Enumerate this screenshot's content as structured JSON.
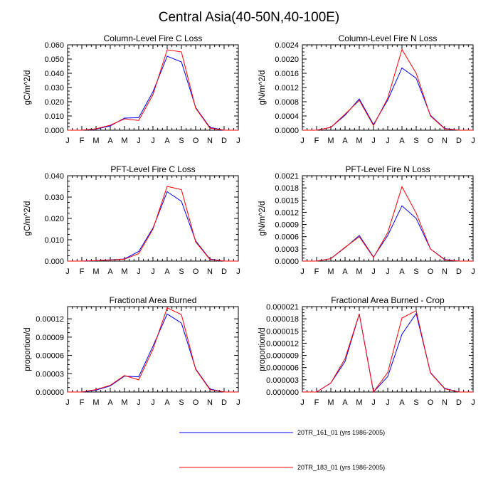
{
  "title": "Central Asia(40-50N,40-100E)",
  "legend": [
    {
      "label": "20TR_161_01 (yrs 1986-2005)",
      "color": "#0000ff"
    },
    {
      "label": "20TR_183_01 (yrs 1986-2005)",
      "color": "#ff0000"
    }
  ],
  "chart_data": [
    {
      "type": "line",
      "title": "Column-Level Fire C Loss",
      "ylabel": "gC/m^2/d",
      "x": [
        "J",
        "F",
        "M",
        "A",
        "M",
        "J",
        "J",
        "A",
        "S",
        "O",
        "N",
        "D",
        "J"
      ],
      "ylim": [
        0,
        0.06
      ],
      "yticks": [
        "0.000",
        "0.010",
        "0.020",
        "0.030",
        "0.040",
        "0.050",
        "0.060"
      ],
      "series": [
        {
          "name": "20TR_161_01 (yrs 1986-2005)",
          "color": "#0000ff",
          "values": [
            0,
            0,
            0.0008,
            0.003,
            0.0085,
            0.0088,
            0.027,
            0.052,
            0.048,
            0.016,
            0.002,
            0,
            0
          ]
        },
        {
          "name": "20TR_183_01 (yrs 1986-2005)",
          "color": "#ff0000",
          "values": [
            0,
            0,
            0.001,
            0.0035,
            0.008,
            0.0068,
            0.025,
            0.0565,
            0.055,
            0.0155,
            0.0015,
            0,
            0
          ]
        }
      ]
    },
    {
      "type": "line",
      "title": "Column-Level Fire N Loss",
      "ylabel": "gN/m^2/d",
      "x": [
        "J",
        "F",
        "M",
        "A",
        "M",
        "J",
        "J",
        "A",
        "S",
        "O",
        "N",
        "D",
        "J"
      ],
      "ylim": [
        0,
        0.0024
      ],
      "yticks": [
        "0.0000",
        "0.0004",
        "0.0008",
        "0.0012",
        "0.0016",
        "0.0020",
        "0.0024"
      ],
      "series": [
        {
          "name": "20TR_161_01 (yrs 1986-2005)",
          "color": "#0000ff",
          "values": [
            0,
            0,
            8e-05,
            0.00042,
            0.00088,
            0.00016,
            0.00085,
            0.00175,
            0.00146,
            0.00042,
            5e-05,
            0,
            0
          ]
        },
        {
          "name": "20TR_183_01 (yrs 1986-2005)",
          "color": "#ff0000",
          "values": [
            0,
            0,
            8e-05,
            0.00045,
            0.00084,
            0.00013,
            0.0009,
            0.00227,
            0.0016,
            0.0004,
            4e-05,
            0,
            0
          ]
        }
      ]
    },
    {
      "type": "line",
      "title": "PFT-Level Fire C Loss",
      "ylabel": "gC/m^2/d",
      "x": [
        "J",
        "F",
        "M",
        "A",
        "M",
        "J",
        "J",
        "A",
        "S",
        "O",
        "N",
        "D",
        "J"
      ],
      "ylim": [
        0,
        0.04
      ],
      "yticks": [
        "0.000",
        "0.010",
        "0.020",
        "0.030",
        "0.040"
      ],
      "series": [
        {
          "name": "20TR_161_01 (yrs 1986-2005)",
          "color": "#0000ff",
          "values": [
            0,
            0,
            0.0002,
            0.0006,
            0.001,
            0.0045,
            0.0155,
            0.0325,
            0.028,
            0.0095,
            0.001,
            0,
            0
          ]
        },
        {
          "name": "20TR_183_01 (yrs 1986-2005)",
          "color": "#ff0000",
          "values": [
            0,
            0,
            0.0002,
            0.0005,
            0.0009,
            0.0035,
            0.015,
            0.035,
            0.0335,
            0.009,
            0.0008,
            0,
            0
          ]
        }
      ]
    },
    {
      "type": "line",
      "title": "PFT-Level Fire N Loss",
      "ylabel": "gN/m^2/d",
      "x": [
        "J",
        "F",
        "M",
        "A",
        "M",
        "J",
        "J",
        "A",
        "S",
        "O",
        "N",
        "D",
        "J"
      ],
      "ylim": [
        0,
        0.0021
      ],
      "yticks": [
        "0.0000",
        "0.0003",
        "0.0006",
        "0.0009",
        "0.0012",
        "0.0015",
        "0.0018",
        "0.0021"
      ],
      "series": [
        {
          "name": "20TR_161_01 (yrs 1986-2005)",
          "color": "#0000ff",
          "values": [
            0,
            0,
            6e-05,
            0.00033,
            0.00063,
            0.0001,
            0.00063,
            0.00136,
            0.00105,
            0.0003,
            4e-05,
            0,
            0
          ]
        },
        {
          "name": "20TR_183_01 (yrs 1986-2005)",
          "color": "#ff0000",
          "values": [
            0,
            0,
            6e-05,
            0.00034,
            0.0006,
            9e-05,
            0.0007,
            0.00183,
            0.00118,
            0.0003,
            3e-05,
            0,
            0
          ]
        }
      ]
    },
    {
      "type": "line",
      "title": "Fractional Area Burned",
      "ylabel": "proportion/d",
      "x": [
        "J",
        "F",
        "M",
        "A",
        "M",
        "J",
        "J",
        "A",
        "S",
        "O",
        "N",
        "D",
        "J"
      ],
      "ylim": [
        0,
        0.00014
      ],
      "yticks": [
        "0.00000",
        "0.00003",
        "0.00006",
        "0.00009",
        "0.00012"
      ],
      "series": [
        {
          "name": "20TR_161_01 (yrs 1986-2005)",
          "color": "#0000ff",
          "values": [
            0,
            0,
            3e-06,
            1e-05,
            2.6e-05,
            2.5e-05,
            7.5e-05,
            0.000128,
            0.000113,
            3.8e-05,
            5e-06,
            0,
            0
          ]
        },
        {
          "name": "20TR_183_01 (yrs 1986-2005)",
          "color": "#ff0000",
          "values": [
            0,
            0,
            4e-06,
            1.1e-05,
            2.7e-05,
            2e-05,
            7e-05,
            0.000138,
            0.000127,
            3.7e-05,
            4e-06,
            0,
            0
          ]
        }
      ]
    },
    {
      "type": "line",
      "title": "Fractional Area Burned - Crop",
      "ylabel": "proportion/d",
      "x": [
        "J",
        "F",
        "M",
        "A",
        "M",
        "J",
        "J",
        "A",
        "S",
        "O",
        "N",
        "D",
        "J"
      ],
      "ylim": [
        0,
        2.1e-05
      ],
      "yticks": [
        "0.000000",
        "0.000003",
        "0.000006",
        "0.000009",
        "0.000012",
        "0.000015",
        "0.000018",
        "0.000021"
      ],
      "series": [
        {
          "name": "20TR_161_01 (yrs 1986-2005)",
          "color": "#0000ff",
          "values": [
            0,
            0,
            2.2e-06,
            7.5e-06,
            1.92e-05,
            0,
            3.8e-06,
            1.42e-05,
            1.93e-05,
            4.8e-06,
            9e-07,
            0,
            0
          ]
        },
        {
          "name": "20TR_183_01 (yrs 1986-2005)",
          "color": "#ff0000",
          "values": [
            0,
            0,
            2.2e-06,
            8.2e-06,
            1.92e-05,
            0,
            4.8e-06,
            1.82e-05,
            2e-05,
            4.7e-06,
            8e-07,
            0,
            0
          ]
        }
      ]
    }
  ]
}
